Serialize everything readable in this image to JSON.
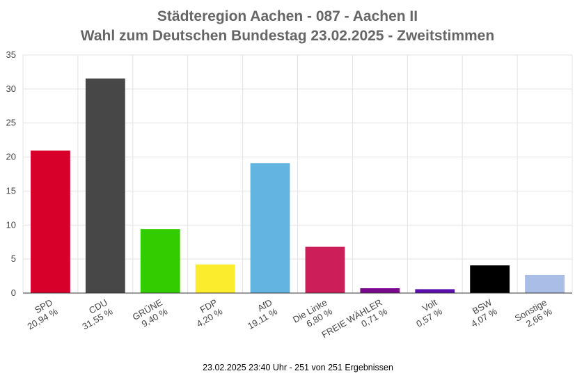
{
  "chart_data": {
    "type": "bar",
    "title": "Städteregion Aachen - 087 - Aachen II",
    "subtitle": "Wahl zum Deutschen Bundestag 23.02.2025  - Zweitstimmen",
    "categories": [
      "SPD",
      "CDU",
      "GRÜNE",
      "FDP",
      "AfD",
      "Die Linke",
      "FREIE WÄHLER",
      "Volt",
      "BSW",
      "Sonstige"
    ],
    "values": [
      20.94,
      31.55,
      9.4,
      4.2,
      19.11,
      6.8,
      0.71,
      0.57,
      4.07,
      2.66
    ],
    "value_labels": [
      "20,94 %",
      "31,55 %",
      "9,40 %",
      "4,20 %",
      "19,11 %",
      "6,80 %",
      "0,71 %",
      "0,57 %",
      "4,07 %",
      "2,66 %"
    ],
    "colors": [
      "#d7002a",
      "#474747",
      "#33cc00",
      "#fcec2e",
      "#63b4e0",
      "#cc1f5a",
      "#7a0a8c",
      "#5b0fad",
      "#000000",
      "#a9bde6"
    ],
    "ylim": [
      0,
      35
    ],
    "yticks": [
      0,
      5,
      10,
      15,
      20,
      25,
      30,
      35
    ],
    "grid": true,
    "footnote": "23.02.2025 23:40 Uhr - 251 von 251 Ergebnissen"
  }
}
